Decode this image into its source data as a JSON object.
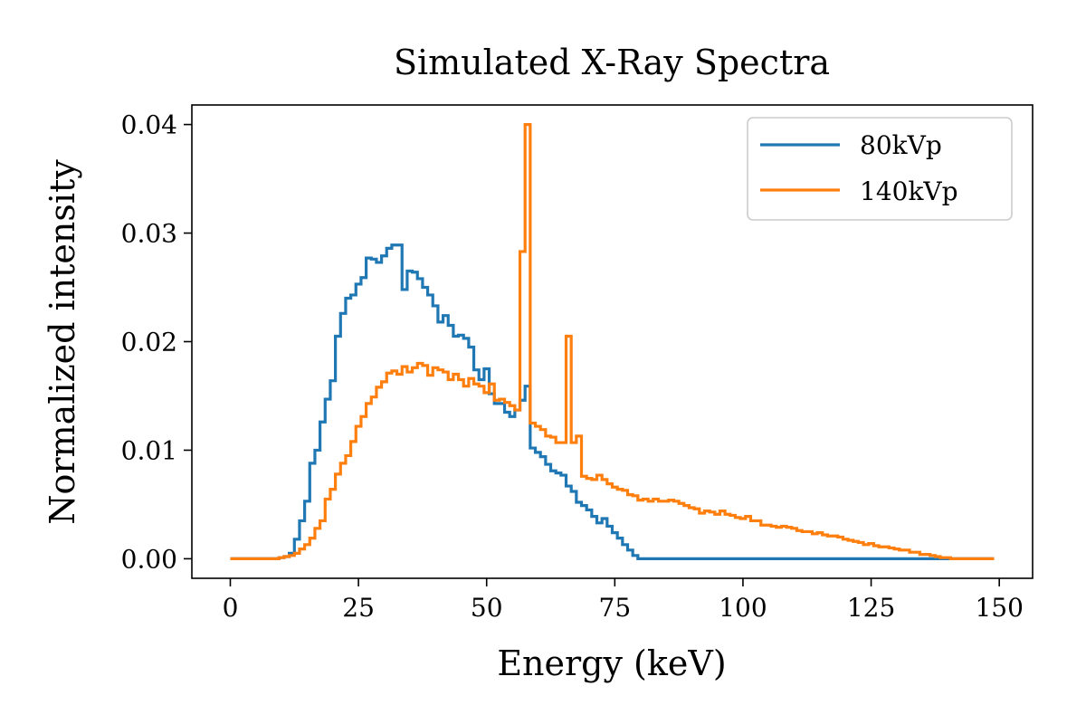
{
  "chart_data": {
    "type": "line",
    "drawstyle": "steps-mid",
    "title": "Simulated X-Ray Spectra",
    "xlabel": "Energy (keV)",
    "ylabel": "Normalized intensity",
    "xlim": [
      -7.5,
      156.5
    ],
    "ylim": [
      -0.0018,
      0.0418
    ],
    "xticks": [
      0,
      25,
      50,
      75,
      100,
      125,
      150
    ],
    "xtick_labels": [
      "0",
      "25",
      "50",
      "75",
      "100",
      "125",
      "150"
    ],
    "yticks": [
      0.0,
      0.01,
      0.02,
      0.03,
      0.04
    ],
    "ytick_labels": [
      "0.00",
      "0.01",
      "0.02",
      "0.03",
      "0.04"
    ],
    "grid": false,
    "legend_position": "top-right",
    "series": [
      {
        "name": "80kVp",
        "color": "#1f77b4",
        "x": [
          0,
          1,
          2,
          3,
          4,
          5,
          6,
          7,
          8,
          9,
          10,
          11,
          12,
          13,
          14,
          15,
          16,
          17,
          18,
          19,
          20,
          21,
          22,
          23,
          24,
          25,
          26,
          27,
          28,
          29,
          30,
          31,
          32,
          33,
          34,
          35,
          36,
          37,
          38,
          39,
          40,
          41,
          42,
          43,
          44,
          45,
          46,
          47,
          48,
          49,
          50,
          51,
          52,
          53,
          54,
          55,
          56,
          57,
          58,
          59,
          60,
          61,
          62,
          63,
          64,
          65,
          66,
          67,
          68,
          69,
          70,
          71,
          72,
          73,
          74,
          75,
          76,
          77,
          78,
          79,
          80,
          85,
          90,
          95,
          100,
          105,
          110,
          115,
          120,
          125,
          130,
          135,
          140,
          145,
          149
        ],
        "y": [
          0,
          0,
          0,
          0,
          0,
          0,
          0,
          0,
          0,
          0,
          0.0001,
          0.0002,
          0.0005,
          0.0018,
          0.0035,
          0.0053,
          0.0088,
          0.01,
          0.0126,
          0.0147,
          0.0164,
          0.0205,
          0.0226,
          0.024,
          0.0243,
          0.0253,
          0.0259,
          0.0277,
          0.0276,
          0.0273,
          0.0279,
          0.0286,
          0.0289,
          0.0289,
          0.0248,
          0.0265,
          0.0264,
          0.0258,
          0.025,
          0.0243,
          0.0233,
          0.0218,
          0.0224,
          0.0215,
          0.0205,
          0.0206,
          0.0203,
          0.0195,
          0.0174,
          0.0165,
          0.0175,
          0.0152,
          0.0143,
          0.0143,
          0.0135,
          0.0131,
          0.0137,
          0.0146,
          0.0159,
          0.0102,
          0.0098,
          0.0094,
          0.0087,
          0.0081,
          0.0079,
          0.0077,
          0.0067,
          0.0062,
          0.0052,
          0.0049,
          0.0045,
          0.0039,
          0.0033,
          0.0037,
          0.003,
          0.0024,
          0.0019,
          0.0013,
          0.0008,
          0.0003,
          0,
          0,
          0,
          0,
          0,
          0,
          0,
          0,
          0,
          0,
          0,
          0,
          0,
          0,
          0
        ]
      },
      {
        "name": "140kVp",
        "color": "#ff7f0e",
        "x": [
          0,
          1,
          2,
          3,
          4,
          5,
          6,
          7,
          8,
          9,
          10,
          11,
          12,
          13,
          14,
          15,
          16,
          17,
          18,
          19,
          20,
          21,
          22,
          23,
          24,
          25,
          26,
          27,
          28,
          29,
          30,
          31,
          32,
          33,
          34,
          35,
          36,
          37,
          38,
          39,
          40,
          41,
          42,
          43,
          44,
          45,
          46,
          47,
          48,
          49,
          50,
          51,
          52,
          53,
          54,
          55,
          56,
          57,
          58,
          59,
          60,
          61,
          62,
          63,
          64,
          65,
          66,
          67,
          68,
          69,
          70,
          71,
          72,
          73,
          74,
          75,
          76,
          77,
          78,
          79,
          80,
          81,
          82,
          83,
          84,
          85,
          86,
          87,
          88,
          89,
          90,
          91,
          92,
          93,
          94,
          95,
          96,
          97,
          98,
          99,
          100,
          101,
          102,
          103,
          104,
          105,
          106,
          107,
          108,
          109,
          110,
          111,
          112,
          113,
          114,
          115,
          116,
          117,
          118,
          119,
          120,
          121,
          122,
          123,
          124,
          125,
          126,
          127,
          128,
          129,
          130,
          131,
          132,
          133,
          134,
          135,
          136,
          137,
          138,
          139,
          140,
          141,
          142,
          143,
          144,
          145,
          146,
          147,
          148,
          149
        ],
        "y": [
          0,
          0,
          0,
          0,
          0,
          0,
          0,
          0,
          0,
          0,
          0.0001,
          0.0002,
          0.0003,
          0.0005,
          0.0009,
          0.0013,
          0.0019,
          0.0028,
          0.0035,
          0.0055,
          0.0064,
          0.0078,
          0.0088,
          0.0095,
          0.0108,
          0.0122,
          0.0131,
          0.0143,
          0.0149,
          0.0158,
          0.0163,
          0.0171,
          0.0173,
          0.017,
          0.0177,
          0.0172,
          0.0176,
          0.018,
          0.0178,
          0.0169,
          0.0176,
          0.0174,
          0.0172,
          0.0165,
          0.017,
          0.0165,
          0.0159,
          0.0166,
          0.0161,
          0.0159,
          0.0153,
          0.0161,
          0.0146,
          0.0147,
          0.0144,
          0.0141,
          0.0137,
          0.0283,
          0.04,
          0.0125,
          0.0122,
          0.0119,
          0.0113,
          0.0112,
          0.0107,
          0.0107,
          0.0205,
          0.0107,
          0.0113,
          0.0076,
          0.0074,
          0.0073,
          0.0077,
          0.0073,
          0.0069,
          0.0066,
          0.0064,
          0.0063,
          0.0059,
          0.0058,
          0.0054,
          0.0055,
          0.0053,
          0.0055,
          0.0053,
          0.0053,
          0.0054,
          0.0053,
          0.0051,
          0.0049,
          0.0047,
          0.0046,
          0.0042,
          0.0044,
          0.0043,
          0.0041,
          0.0044,
          0.0041,
          0.004,
          0.0038,
          0.0037,
          0.0039,
          0.0035,
          0.0035,
          0.0031,
          0.0031,
          0.003,
          0.0029,
          0.003,
          0.0029,
          0.0028,
          0.0026,
          0.0025,
          0.0025,
          0.0023,
          0.0024,
          0.0022,
          0.0021,
          0.0021,
          0.002,
          0.0018,
          0.0017,
          0.0016,
          0.0015,
          0.0013,
          0.0014,
          0.0012,
          0.0011,
          0.0011,
          0.001,
          0.0009,
          0.0008,
          0.0008,
          0.0006,
          0.0006,
          0.0004,
          0.0004,
          0.0003,
          0.0002,
          0.0001,
          0.0001,
          0,
          0,
          0,
          0,
          0,
          0,
          0,
          0,
          0
        ]
      }
    ]
  }
}
